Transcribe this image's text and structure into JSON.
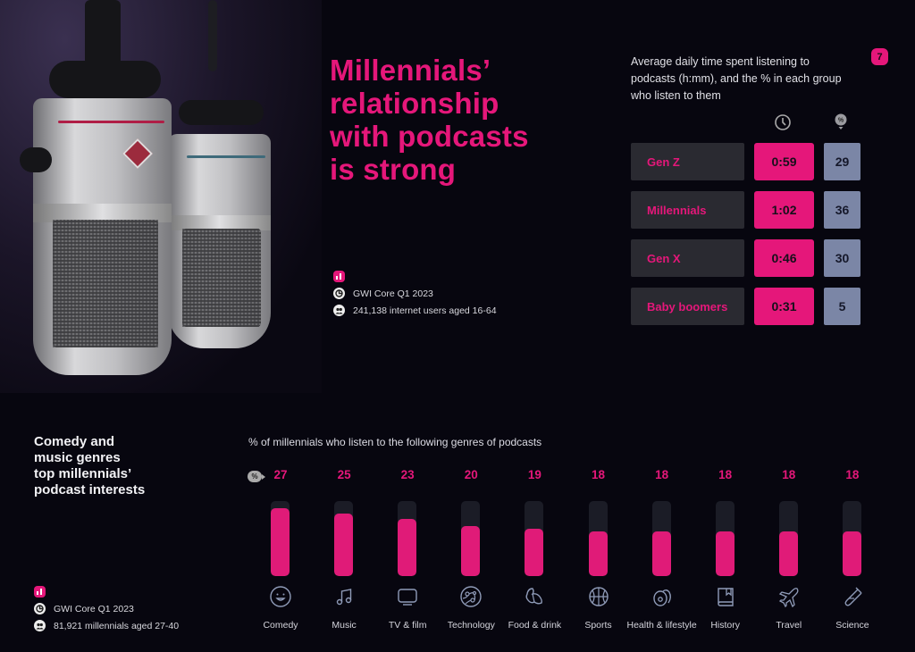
{
  "page": {
    "number": "7",
    "headline": [
      "Millennials’",
      "relationship",
      "with podcasts",
      "is strong"
    ],
    "accent_color": "#e5177a"
  },
  "top_source": {
    "icon": "bar-chart-icon",
    "dataset": "GWI Core Q1 2023",
    "sample": "241,138 internet users aged 16-64"
  },
  "generations_table": {
    "description": "Average daily time spent listening to podcasts (h:mm), and the % in each group who listen to them",
    "column_icons": [
      "clock-icon",
      "percent-icon"
    ],
    "rows": [
      {
        "label": "Gen Z",
        "time": "0:59",
        "pct": "29"
      },
      {
        "label": "Millennials",
        "time": "1:02",
        "pct": "36"
      },
      {
        "label": "Gen X",
        "time": "0:46",
        "pct": "30"
      },
      {
        "label": "Baby boomers",
        "time": "0:31",
        "pct": "5"
      }
    ]
  },
  "genres_section": {
    "headline": [
      "Comedy and",
      "music genres",
      "top millennials’",
      "podcast interests"
    ],
    "pct_marker": "%"
  },
  "bottom_source": {
    "icon": "bar-chart-icon",
    "dataset": "GWI Core Q1 2023",
    "sample": "81,921 millennials aged 27-40"
  },
  "chart_data": [
    {
      "type": "table",
      "title": "Average daily time spent listening to podcasts (h:mm), and the % in each group who listen to them",
      "categories": [
        "Gen Z",
        "Millennials",
        "Gen X",
        "Baby boomers"
      ],
      "series": [
        {
          "name": "Avg daily time (h:mm)",
          "values": [
            "0:59",
            "1:02",
            "0:46",
            "0:31"
          ]
        },
        {
          "name": "% who listen",
          "values": [
            29,
            36,
            30,
            5
          ]
        }
      ]
    },
    {
      "type": "bar",
      "title": "% of millennials who listen to the following genres of podcasts",
      "xlabel": "",
      "ylabel": "%",
      "categories": [
        "Comedy",
        "Music",
        "TV & film",
        "Technology",
        "Food & drink",
        "Sports",
        "Health & lifestyle",
        "History",
        "Travel",
        "Science"
      ],
      "values": [
        27,
        25,
        23,
        20,
        19,
        18,
        18,
        18,
        18,
        18
      ],
      "icons": [
        "smiley-icon",
        "music-note-icon",
        "tv-icon",
        "technology-icon",
        "croissant-icon",
        "basketball-icon",
        "avocado-icon",
        "book-icon",
        "airplane-icon",
        "test-tube-icon"
      ],
      "ylim": [
        0,
        30
      ],
      "grid": false,
      "legend": "none"
    }
  ]
}
